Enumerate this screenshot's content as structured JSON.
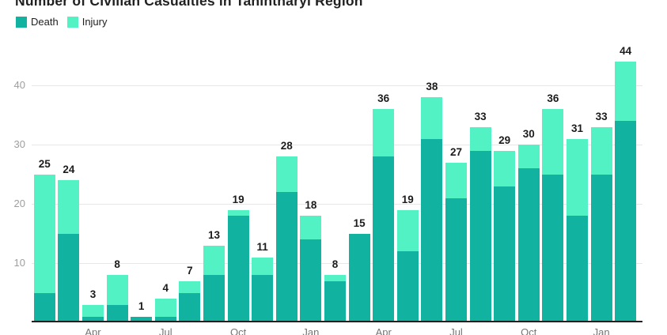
{
  "title": "Number of Civilian Casualties in Tanintharyi Region",
  "legend": {
    "death_label": "Death",
    "injury_label": "Injury"
  },
  "colors": {
    "death": "#12b2a0",
    "injury": "#52f2c4",
    "axis": "#212121",
    "gridline": "#e7e7e7",
    "y_tick_text": "#9e9e9e",
    "x_tick_text": "#757575"
  },
  "chart_data": {
    "type": "bar",
    "stacked": true,
    "title": "Number of Civilian Casualties in Tanintharyi Region",
    "xlabel": "",
    "ylabel": "",
    "ylim": [
      0,
      44
    ],
    "y_ticks": [
      10,
      20,
      30,
      40
    ],
    "grid": true,
    "legend_position": "top-left",
    "bar_count": 25,
    "series": [
      {
        "name": "Death",
        "color": "#12b2a0",
        "values": [
          5,
          15,
          1,
          3,
          1,
          1,
          5,
          8,
          18,
          8,
          22,
          14,
          7,
          15,
          28,
          12,
          31,
          21,
          29,
          23,
          26,
          25,
          18,
          25,
          34
        ]
      },
      {
        "name": "Injury",
        "color": "#52f2c4",
        "values": [
          20,
          9,
          2,
          5,
          0,
          3,
          2,
          5,
          1,
          3,
          6,
          4,
          1,
          0,
          8,
          7,
          7,
          6,
          4,
          6,
          4,
          11,
          13,
          8,
          10
        ]
      }
    ],
    "totals": [
      25,
      24,
      3,
      8,
      1,
      4,
      7,
      13,
      19,
      11,
      28,
      18,
      8,
      15,
      36,
      19,
      38,
      27,
      33,
      29,
      30,
      36,
      31,
      33,
      44
    ],
    "x_tick_labels": [
      {
        "bar_index": 2,
        "label": "Apr"
      },
      {
        "bar_index": 5,
        "label": "Jul"
      },
      {
        "bar_index": 8,
        "label": "Oct"
      },
      {
        "bar_index": 11,
        "label": "Jan"
      },
      {
        "bar_index": 14,
        "label": "Apr"
      },
      {
        "bar_index": 17,
        "label": "Jul"
      },
      {
        "bar_index": 20,
        "label": "Oct"
      },
      {
        "bar_index": 23,
        "label": "Jan"
      }
    ]
  }
}
